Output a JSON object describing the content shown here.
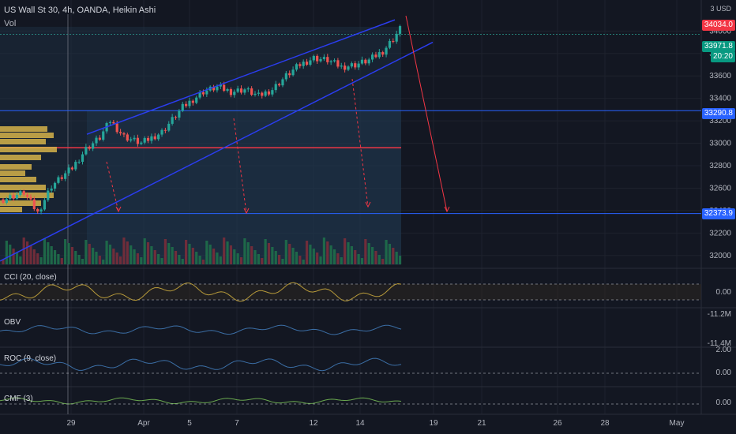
{
  "header": {
    "title": "US Wall St 30, 4h, OANDA, Heikin Ashi",
    "volume_label": "Vol",
    "currency": "3 USD"
  },
  "price_tags": {
    "high": {
      "value": "34034.0",
      "color": "#f23645"
    },
    "last": {
      "value": "33971.8",
      "color": "#089981"
    },
    "countdown": {
      "value": "20:20",
      "color": "#089981"
    },
    "level_upper": {
      "value": "33290.8",
      "color": "#2962ff"
    },
    "level_lower": {
      "value": "32373.9",
      "color": "#2962ff"
    }
  },
  "indicators": [
    {
      "name": "CCI (20, close)",
      "ticks": [
        "0.00"
      ]
    },
    {
      "name": "OBV",
      "ticks": [
        "-11.2M",
        "-11.4M"
      ]
    },
    {
      "name": "ROC (9, close)",
      "ticks": [
        "2.00",
        "0.00"
      ]
    },
    {
      "name": "CMF (3)",
      "ticks": [
        "0.00"
      ]
    }
  ],
  "x_axis": [
    "29",
    "Apr",
    "5",
    "7",
    "12",
    "14",
    "19",
    "21",
    "26",
    "28",
    "May"
  ],
  "chart_data": {
    "type": "candlestick",
    "title": "US Wall St 30, 4h, OANDA, Heikin Ashi",
    "y_ticks": [
      34000,
      33800,
      33600,
      33400,
      33200,
      33000,
      32800,
      32600,
      32400,
      32200,
      32000
    ],
    "ylim": [
      31900,
      34150
    ],
    "horizontal_levels": [
      33290.8,
      32373.9,
      32960
    ],
    "last_price": 33971.8,
    "high_price": 34034.0,
    "price_path": [
      [
        0,
        32500
      ],
      [
        6,
        32560
      ],
      [
        10,
        32380
      ],
      [
        14,
        32620
      ],
      [
        20,
        32780
      ],
      [
        24,
        32950
      ],
      [
        28,
        33050
      ],
      [
        31,
        33200
      ],
      [
        35,
        33060
      ],
      [
        40,
        33000
      ],
      [
        46,
        33100
      ],
      [
        52,
        33320
      ],
      [
        58,
        33460
      ],
      [
        62,
        33500
      ],
      [
        66,
        33460
      ],
      [
        70,
        33480
      ],
      [
        74,
        33420
      ],
      [
        78,
        33480
      ],
      [
        82,
        33600
      ],
      [
        86,
        33700
      ],
      [
        90,
        33760
      ],
      [
        94,
        33740
      ],
      [
        98,
        33680
      ],
      [
        102,
        33700
      ],
      [
        106,
        33740
      ],
      [
        110,
        33820
      ],
      [
        113,
        33930
      ],
      [
        115,
        34020
      ]
    ],
    "grid": true
  },
  "colors": {
    "background": "#131722",
    "grid": "#1e222d",
    "up": "#26a69a",
    "down": "#ef5350",
    "channel": "#2b3df0",
    "level": "#2962ff",
    "support": "#f23645",
    "profile": "#d6b34a",
    "indicator_line": "#b79a3a"
  }
}
